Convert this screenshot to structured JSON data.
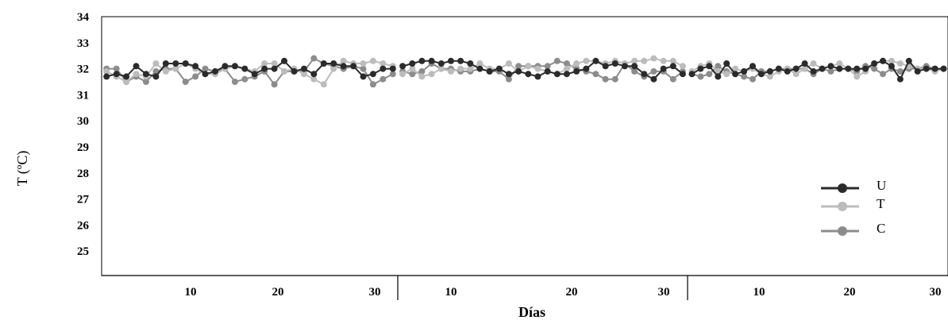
{
  "chart_data": {
    "type": "line",
    "xlabel": "Días",
    "ylabel": "T (ºC)",
    "ylim": [
      24,
      34
    ],
    "yticks": [
      "25",
      "26",
      "27",
      "28",
      "29",
      "30",
      "31",
      "32",
      "33",
      "34"
    ],
    "panels": [
      {
        "ticks": [
          "10",
          "20",
          "30"
        ]
      },
      {
        "ticks": [
          "10",
          "20",
          "30"
        ]
      },
      {
        "ticks": [
          "10",
          "20",
          "30"
        ]
      }
    ],
    "grid": false,
    "legend_position": "right",
    "series": [
      {
        "name": "U",
        "color": "#2b2b2b",
        "values": [
          31.7,
          31.8,
          31.7,
          32.1,
          31.8,
          31.7,
          32.2,
          32.2,
          32.2,
          32.1,
          31.8,
          31.9,
          32.1,
          32.1,
          32.0,
          31.8,
          32.0,
          32.0,
          32.3,
          31.9,
          32.0,
          31.8,
          32.2,
          32.2,
          32.1,
          32.1,
          31.7,
          31.8,
          32.0,
          32.0,
          32.1,
          32.2,
          32.3,
          32.3,
          32.2,
          32.3,
          32.3,
          32.2,
          32.0,
          31.9,
          32.0,
          31.8,
          31.9,
          31.8,
          31.7,
          31.9,
          31.8,
          31.8,
          31.9,
          32.0,
          32.3,
          32.1,
          32.2,
          32.1,
          32.1,
          31.8,
          31.6,
          32.0,
          32.1,
          31.8,
          31.8,
          32.0,
          32.1,
          31.7,
          32.2,
          31.8,
          31.9,
          32.1,
          31.8,
          31.9,
          32.0,
          31.9,
          32.0,
          32.2,
          31.9,
          32.0,
          32.1,
          32.0,
          32.0,
          32.0,
          32.0,
          32.2,
          32.3,
          32.1,
          31.6,
          32.3,
          31.9,
          32.0,
          32.0,
          32.0
        ]
      },
      {
        "name": "T",
        "color": "#bcbcbc",
        "values": [
          31.9,
          31.7,
          31.5,
          31.8,
          31.7,
          32.2,
          31.9,
          32.0,
          32.2,
          32.0,
          31.8,
          31.8,
          32.0,
          32.1,
          32.0,
          31.9,
          32.2,
          32.2,
          31.9,
          32.0,
          31.8,
          31.6,
          31.4,
          32.0,
          32.3,
          32.2,
          32.2,
          32.3,
          32.2,
          32.1,
          31.8,
          32.0,
          31.7,
          31.8,
          32.0,
          31.9,
          32.0,
          32.0,
          32.2,
          32.0,
          32.0,
          32.2,
          31.9,
          32.1,
          32.0,
          31.9,
          31.8,
          32.0,
          32.2,
          32.3,
          32.3,
          32.2,
          32.3,
          32.2,
          32.3,
          32.3,
          32.4,
          32.3,
          32.3,
          32.1,
          31.9,
          32.1,
          32.2,
          31.9,
          31.8,
          32.0,
          31.9,
          32.0,
          31.8,
          31.7,
          31.9,
          32.0,
          31.8,
          32.0,
          32.2,
          32.0,
          32.1,
          32.2,
          32.0,
          31.7,
          31.9,
          32.2,
          32.3,
          32.3,
          32.2,
          32.1,
          32.0,
          32.0,
          31.9,
          32.0
        ]
      },
      {
        "name": "C",
        "color": "#8c8c8c",
        "values": [
          32.0,
          32.0,
          31.5,
          31.7,
          31.5,
          31.9,
          32.0,
          32.0,
          31.5,
          31.7,
          32.0,
          31.9,
          32.0,
          31.5,
          31.6,
          31.7,
          31.9,
          31.4,
          31.9,
          31.9,
          31.9,
          32.4,
          32.2,
          32.1,
          32.0,
          32.1,
          32.0,
          31.4,
          31.6,
          31.8,
          31.9,
          31.8,
          31.9,
          32.2,
          32.0,
          32.0,
          31.9,
          31.9,
          32.0,
          31.9,
          31.9,
          31.6,
          32.1,
          32.1,
          32.1,
          32.1,
          32.3,
          32.2,
          32.0,
          31.9,
          31.8,
          31.6,
          31.6,
          32.2,
          31.9,
          31.7,
          31.9,
          31.9,
          31.6,
          31.9,
          31.8,
          31.7,
          31.8,
          32.1,
          31.9,
          31.8,
          31.7,
          31.6,
          31.9,
          31.9,
          32.0,
          32.0,
          32.0,
          32.0,
          31.8,
          32.0,
          31.9,
          32.0,
          32.0,
          31.9,
          32.1,
          32.0,
          31.8,
          32.0,
          31.9,
          32.0,
          32.0,
          32.1,
          32.0,
          32.0
        ]
      }
    ]
  }
}
